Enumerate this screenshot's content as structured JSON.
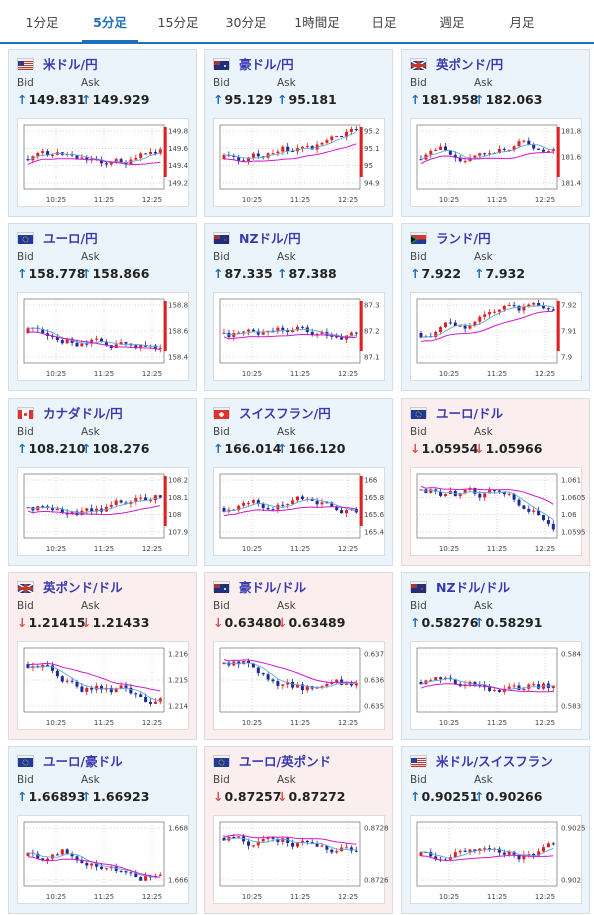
{
  "tabs": [
    "1分足",
    "5分足",
    "15分足",
    "30分足",
    "1時間足",
    "日足",
    "週足",
    "月足"
  ],
  "active_tab": "5分足",
  "labels": {
    "bid": "Bid",
    "ask": "Ask"
  },
  "arrows": {
    "up": "↑",
    "down": "↓"
  },
  "time_labels": [
    "10:25",
    "11:25",
    "12:25"
  ],
  "colors": {
    "up_bar": "#e02020",
    "down_bar": "#1a2a9a",
    "ma_long": "#d01ad0",
    "ma_short": "#5fa8d8",
    "accent": "#1f6fb8"
  },
  "cards": [
    {
      "pair": "米ドル/円",
      "flag": "us",
      "direction": "up",
      "bid": "149.831",
      "ask": "149.929",
      "y_ticks": [
        "149.8",
        "149.6",
        "149.4",
        "149.2"
      ]
    },
    {
      "pair": "豪ドル/円",
      "flag": "au",
      "direction": "up",
      "bid": "95.129",
      "ask": "95.181",
      "y_ticks": [
        "95.2",
        "95.1",
        "95",
        "94.9"
      ]
    },
    {
      "pair": "英ポンド/円",
      "flag": "uk",
      "direction": "up",
      "bid": "181.958",
      "ask": "182.063",
      "y_ticks": [
        "181.8",
        "181.6",
        "181.4"
      ]
    },
    {
      "pair": "ユーロ/円",
      "flag": "eu",
      "direction": "up",
      "bid": "158.778",
      "ask": "158.866",
      "y_ticks": [
        "158.8",
        "158.6",
        "158.4"
      ]
    },
    {
      "pair": "NZドル/円",
      "flag": "nz",
      "direction": "up",
      "bid": "87.335",
      "ask": "87.388",
      "y_ticks": [
        "87.3",
        "87.2",
        "87.1"
      ]
    },
    {
      "pair": "ランド/円",
      "flag": "za",
      "direction": "up",
      "bid": "7.922",
      "ask": "7.932",
      "y_ticks": [
        "7.92",
        "7.91",
        "7.9"
      ]
    },
    {
      "pair": "カナダドル/円",
      "flag": "ca",
      "direction": "up",
      "bid": "108.210",
      "ask": "108.276",
      "y_ticks": [
        "108.2",
        "108.1",
        "108",
        "107.9"
      ]
    },
    {
      "pair": "スイスフラン/円",
      "flag": "ch",
      "direction": "up",
      "bid": "166.014",
      "ask": "166.120",
      "y_ticks": [
        "166",
        "165.8",
        "165.6",
        "165.4"
      ]
    },
    {
      "pair": "ユーロ/ドル",
      "flag": "eu",
      "direction": "down",
      "bid": "1.05954",
      "ask": "1.05966",
      "y_ticks": [
        "1.061",
        "1.0605",
        "1.06",
        "1.0595"
      ]
    },
    {
      "pair": "英ポンド/ドル",
      "flag": "uk",
      "direction": "down",
      "bid": "1.21415",
      "ask": "1.21433",
      "y_ticks": [
        "1.216",
        "1.215",
        "1.214"
      ]
    },
    {
      "pair": "豪ドル/ドル",
      "flag": "au",
      "direction": "down",
      "bid": "0.63480",
      "ask": "0.63489",
      "y_ticks": [
        "0.637",
        "0.636",
        "0.635"
      ]
    },
    {
      "pair": "NZドル/ドル",
      "flag": "nz",
      "direction": "up",
      "bid": "0.58276",
      "ask": "0.58291",
      "y_ticks": [
        "0.584",
        "0.583"
      ]
    },
    {
      "pair": "ユーロ/豪ドル",
      "flag": "eu",
      "direction": "up",
      "bid": "1.66893",
      "ask": "1.66923",
      "y_ticks": [
        "1.668",
        "1.666"
      ]
    },
    {
      "pair": "ユーロ/英ポンド",
      "flag": "eu",
      "direction": "down",
      "bid": "0.87257",
      "ask": "0.87272",
      "y_ticks": [
        "0.8728",
        "0.8726"
      ]
    },
    {
      "pair": "米ドル/スイスフラン",
      "flag": "us",
      "direction": "up",
      "bid": "0.90251",
      "ask": "0.90266",
      "y_ticks": [
        "0.9025",
        "0.902"
      ]
    }
  ]
}
